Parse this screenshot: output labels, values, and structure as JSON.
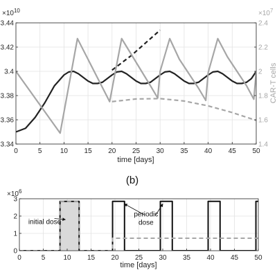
{
  "chart_data": [
    {
      "type": "line",
      "panel_label": "(b)",
      "xlabel": "time [days]",
      "ylabel": "",
      "y2label": "CAR-T cells",
      "xlim": [
        0,
        50
      ],
      "ylim": [
        3.34,
        3.44
      ],
      "y2lim": [
        1.4,
        2.4
      ],
      "x_ticks": [
        0,
        5,
        10,
        15,
        20,
        25,
        30,
        35,
        40,
        45,
        50
      ],
      "x_tick_labels": [
        "0",
        "5",
        "10",
        "15",
        "20",
        "25",
        "30",
        "35",
        "40",
        "45",
        "50"
      ],
      "y_ticks": [
        3.34,
        3.36,
        3.38,
        3.4,
        3.42,
        3.44
      ],
      "y_tick_labels": [
        "3.34",
        "3.36",
        "3.38",
        "3.4",
        "3.42",
        "3.44"
      ],
      "y_multiplier": "×10",
      "y_multiplier_exp": "10",
      "y2_ticks": [
        1.4,
        1.6,
        1.8,
        2.0,
        2.2,
        2.4
      ],
      "y2_tick_labels": [
        "1.4",
        "1.6",
        "1.8",
        "2",
        "2.2",
        "2.4"
      ],
      "y2_multiplier": "×10",
      "y2_multiplier_exp": "7",
      "grid": true,
      "series": [
        {
          "axis": "left",
          "color": "#222222",
          "dash": "solid",
          "x": [
            0,
            2,
            4,
            6,
            8,
            10,
            11,
            12,
            13,
            14,
            15,
            16,
            17,
            18,
            19,
            20,
            21,
            22,
            23,
            24,
            25,
            26,
            27,
            28,
            29,
            30,
            31,
            32,
            33,
            34,
            35,
            36,
            37,
            38,
            39,
            40,
            41,
            42,
            43,
            44,
            45,
            46,
            47,
            48,
            49,
            50
          ],
          "y": [
            3.35,
            3.353,
            3.362,
            3.374,
            3.388,
            3.397,
            3.3995,
            3.4,
            3.398,
            3.395,
            3.392,
            3.39,
            3.39,
            3.391,
            3.394,
            3.397,
            3.3995,
            3.4,
            3.398,
            3.395,
            3.392,
            3.39,
            3.39,
            3.391,
            3.394,
            3.397,
            3.3995,
            3.4,
            3.398,
            3.395,
            3.392,
            3.39,
            3.39,
            3.391,
            3.394,
            3.397,
            3.3995,
            3.4,
            3.398,
            3.395,
            3.392,
            3.39,
            3.39,
            3.391,
            3.394,
            3.4
          ]
        },
        {
          "axis": "left",
          "color": "#222222",
          "dash": "dashed",
          "x": [
            20,
            22,
            24,
            26,
            28,
            30
          ],
          "y": [
            3.401,
            3.407,
            3.413,
            3.42,
            3.427,
            3.434
          ]
        },
        {
          "axis": "right",
          "color": "#a6a6a6",
          "dash": "solid",
          "x": [
            0,
            9.2,
            12.8,
            19.5,
            22,
            28,
            29.5,
            30,
            32,
            34,
            38,
            39.5,
            40,
            42,
            44,
            48,
            49.5,
            50
          ],
          "y": [
            2.0,
            1.49,
            2.27,
            1.75,
            2.27,
            1.88,
            1.78,
            2.0,
            2.27,
            2.1,
            1.86,
            1.76,
            1.99,
            2.27,
            2.12,
            1.88,
            1.77,
            2.0
          ]
        },
        {
          "axis": "right",
          "color": "#a6a6a6",
          "dash": "dashed",
          "x": [
            20,
            25,
            30,
            35,
            40,
            45,
            50
          ],
          "y": [
            1.75,
            1.772,
            1.775,
            1.755,
            1.715,
            1.66,
            1.595
          ]
        }
      ]
    },
    {
      "type": "line",
      "xlabel": "time [days]",
      "ylabel": "",
      "xlim": [
        0,
        50
      ],
      "ylim": [
        0,
        3
      ],
      "x_ticks": [
        0,
        5,
        10,
        15,
        20,
        25,
        30,
        35,
        40,
        45,
        50
      ],
      "x_tick_labels": [
        "0",
        "5",
        "10",
        "15",
        "20",
        "25",
        "30",
        "35",
        "40",
        "45",
        "50"
      ],
      "y_ticks": [
        0,
        1,
        2,
        3
      ],
      "y_tick_labels": [
        "0",
        "1",
        "2",
        "3"
      ],
      "y_multiplier": "×10",
      "y_multiplier_exp": "6",
      "grid": true,
      "shaded_region": {
        "x": [
          8.5,
          12.5
        ],
        "y": [
          0,
          2.85
        ],
        "color": "#d9d9d9"
      },
      "annotations": [
        {
          "text": "initial dose",
          "lines": [
            "initial dose"
          ],
          "x": 5.3,
          "y": 1.3,
          "arrow_to": [
            9.6,
            1.8
          ]
        },
        {
          "text": "periodic dose",
          "lines": [
            "periodic",
            "dose"
          ],
          "x": 26.5,
          "y": 1.5,
          "arrow_to": [
            [
              22.0,
              2.7
            ],
            [
              30.0,
              2.7
            ]
          ]
        }
      ],
      "series": [
        {
          "color": "#111111",
          "dash": "solid",
          "x": [
            0,
            8.5,
            8.5,
            12.5,
            12.5,
            19.5,
            19.5,
            22,
            22,
            29.5,
            29.5,
            32,
            32,
            39.5,
            39.5,
            42,
            42,
            49.5,
            49.5,
            50
          ],
          "y": [
            0,
            0,
            2.85,
            2.85,
            0,
            0,
            2.85,
            2.85,
            0,
            0,
            2.85,
            2.85,
            0,
            0,
            2.85,
            2.85,
            0,
            0,
            2.85,
            2.85
          ]
        },
        {
          "color": "#a6a6a6",
          "dash": "dashed",
          "x": [
            0,
            8.5,
            8.5,
            12.5,
            12.5,
            19.5,
            19.5,
            50
          ],
          "y": [
            0,
            0,
            2.85,
            2.85,
            0,
            0,
            0.72,
            0.72
          ]
        }
      ]
    }
  ]
}
